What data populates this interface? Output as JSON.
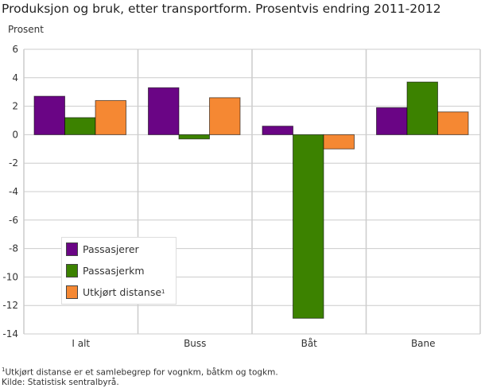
{
  "chart_data": {
    "type": "bar",
    "title": "Produksjon og bruk, etter transportform. Prosentvis endring 2011-2012",
    "ylabel": "Prosent",
    "xlabel": "",
    "ylim": [
      -14,
      6
    ],
    "yticks": [
      6,
      4,
      2,
      0,
      -2,
      -4,
      -6,
      -8,
      -10,
      -12,
      -14
    ],
    "grid": true,
    "legend_position": "bottom-left",
    "categories": [
      "I alt",
      "Buss",
      "Båt",
      "Bane"
    ],
    "series": [
      {
        "name": "Passasjerer",
        "color": "#6a0585",
        "values": [
          2.7,
          3.3,
          0.6,
          1.9
        ]
      },
      {
        "name": "Passasjerkm",
        "color": "#3c8200",
        "values": [
          1.2,
          -0.3,
          -12.9,
          3.7
        ]
      },
      {
        "name": "Utkjørt distanse",
        "superscript": "1",
        "color": "#f58833",
        "values": [
          2.4,
          2.6,
          -1.0,
          1.6
        ]
      }
    ]
  },
  "footnotes": {
    "note_marker": "1",
    "note": "Utkjørt distanse er et samlebegrep for vognkm, båtkm og togkm.",
    "source": "Kilde: Statistisk sentralbyrå."
  }
}
